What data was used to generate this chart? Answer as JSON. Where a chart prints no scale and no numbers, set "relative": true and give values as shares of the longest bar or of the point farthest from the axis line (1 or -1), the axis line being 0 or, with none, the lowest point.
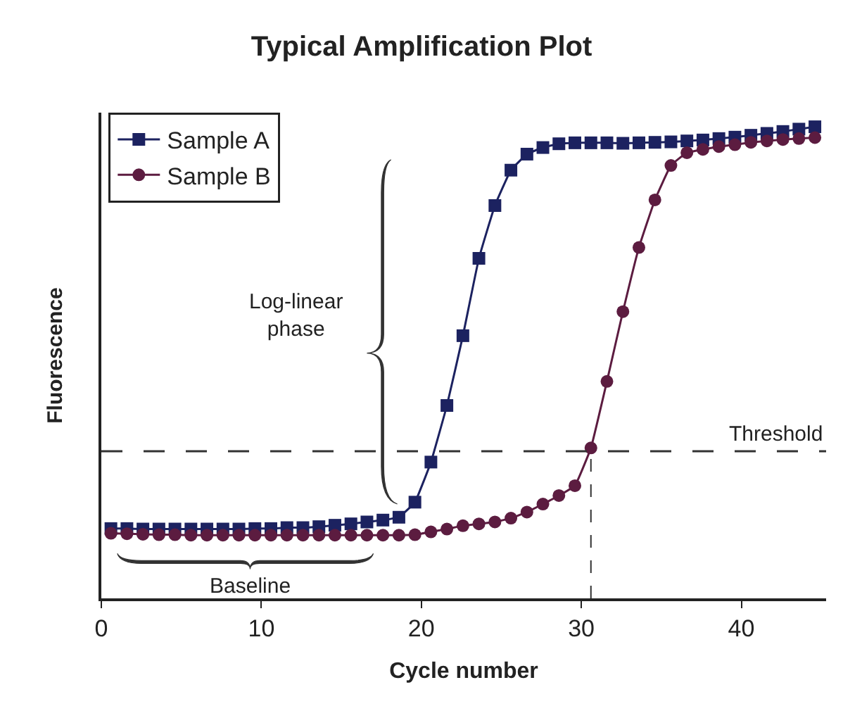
{
  "chart_data": {
    "type": "line",
    "title": "Typical Amplification Plot",
    "xlabel": "Cycle number",
    "ylabel": "Fluorescence",
    "relative": true,
    "x": [
      0.6,
      1.6,
      2.6,
      3.6,
      4.6,
      5.6,
      6.6,
      7.6,
      8.6,
      9.6,
      10.6,
      11.6,
      12.6,
      13.6,
      14.6,
      15.6,
      16.6,
      17.6,
      18.6,
      19.6,
      20.6,
      21.6,
      22.6,
      23.6,
      24.6,
      25.6,
      26.6,
      27.6,
      28.6,
      29.6,
      30.6,
      31.6,
      32.6,
      33.6,
      34.6,
      35.6,
      36.6,
      37.6,
      38.6,
      39.6,
      40.6,
      41.6,
      42.6,
      43.6,
      44.6
    ],
    "series": [
      {
        "name": "Sample A",
        "color": "#1c2260",
        "marker": "square",
        "values": [
          0.148,
          0.148,
          0.147,
          0.147,
          0.147,
          0.147,
          0.147,
          0.147,
          0.147,
          0.148,
          0.148,
          0.15,
          0.15,
          0.152,
          0.155,
          0.158,
          0.162,
          0.166,
          0.172,
          0.204,
          0.289,
          0.409,
          0.557,
          0.721,
          0.833,
          0.908,
          0.942,
          0.956,
          0.964,
          0.966,
          0.966,
          0.966,
          0.965,
          0.966,
          0.967,
          0.968,
          0.97,
          0.972,
          0.975,
          0.978,
          0.982,
          0.986,
          0.99,
          0.995,
          1.0
        ]
      },
      {
        "name": "Sample B",
        "color": "#5c1c40",
        "marker": "circle",
        "values": [
          0.138,
          0.137,
          0.136,
          0.135,
          0.135,
          0.134,
          0.134,
          0.134,
          0.134,
          0.134,
          0.134,
          0.134,
          0.134,
          0.134,
          0.134,
          0.134,
          0.134,
          0.134,
          0.134,
          0.135,
          0.141,
          0.147,
          0.154,
          0.158,
          0.162,
          0.17,
          0.183,
          0.2,
          0.218,
          0.239,
          0.319,
          0.46,
          0.608,
          0.744,
          0.845,
          0.918,
          0.945,
          0.952,
          0.958,
          0.962,
          0.967,
          0.97,
          0.973,
          0.975,
          0.977
        ]
      }
    ],
    "xlim": [
      0,
      45.3
    ],
    "xticks": [
      0,
      10,
      20,
      30,
      40
    ],
    "ref_lines": [
      {
        "axis": "y",
        "value": 0.312,
        "label": "Threshold",
        "line_style": "dashed",
        "color": "#333333"
      },
      {
        "axis": "x",
        "value": 30.6,
        "line_style": "dashed",
        "color": "#333333"
      }
    ],
    "annotations": [
      "Log-linear\nphase",
      "Baseline"
    ],
    "legend": "top left",
    "line_style": "solid"
  }
}
